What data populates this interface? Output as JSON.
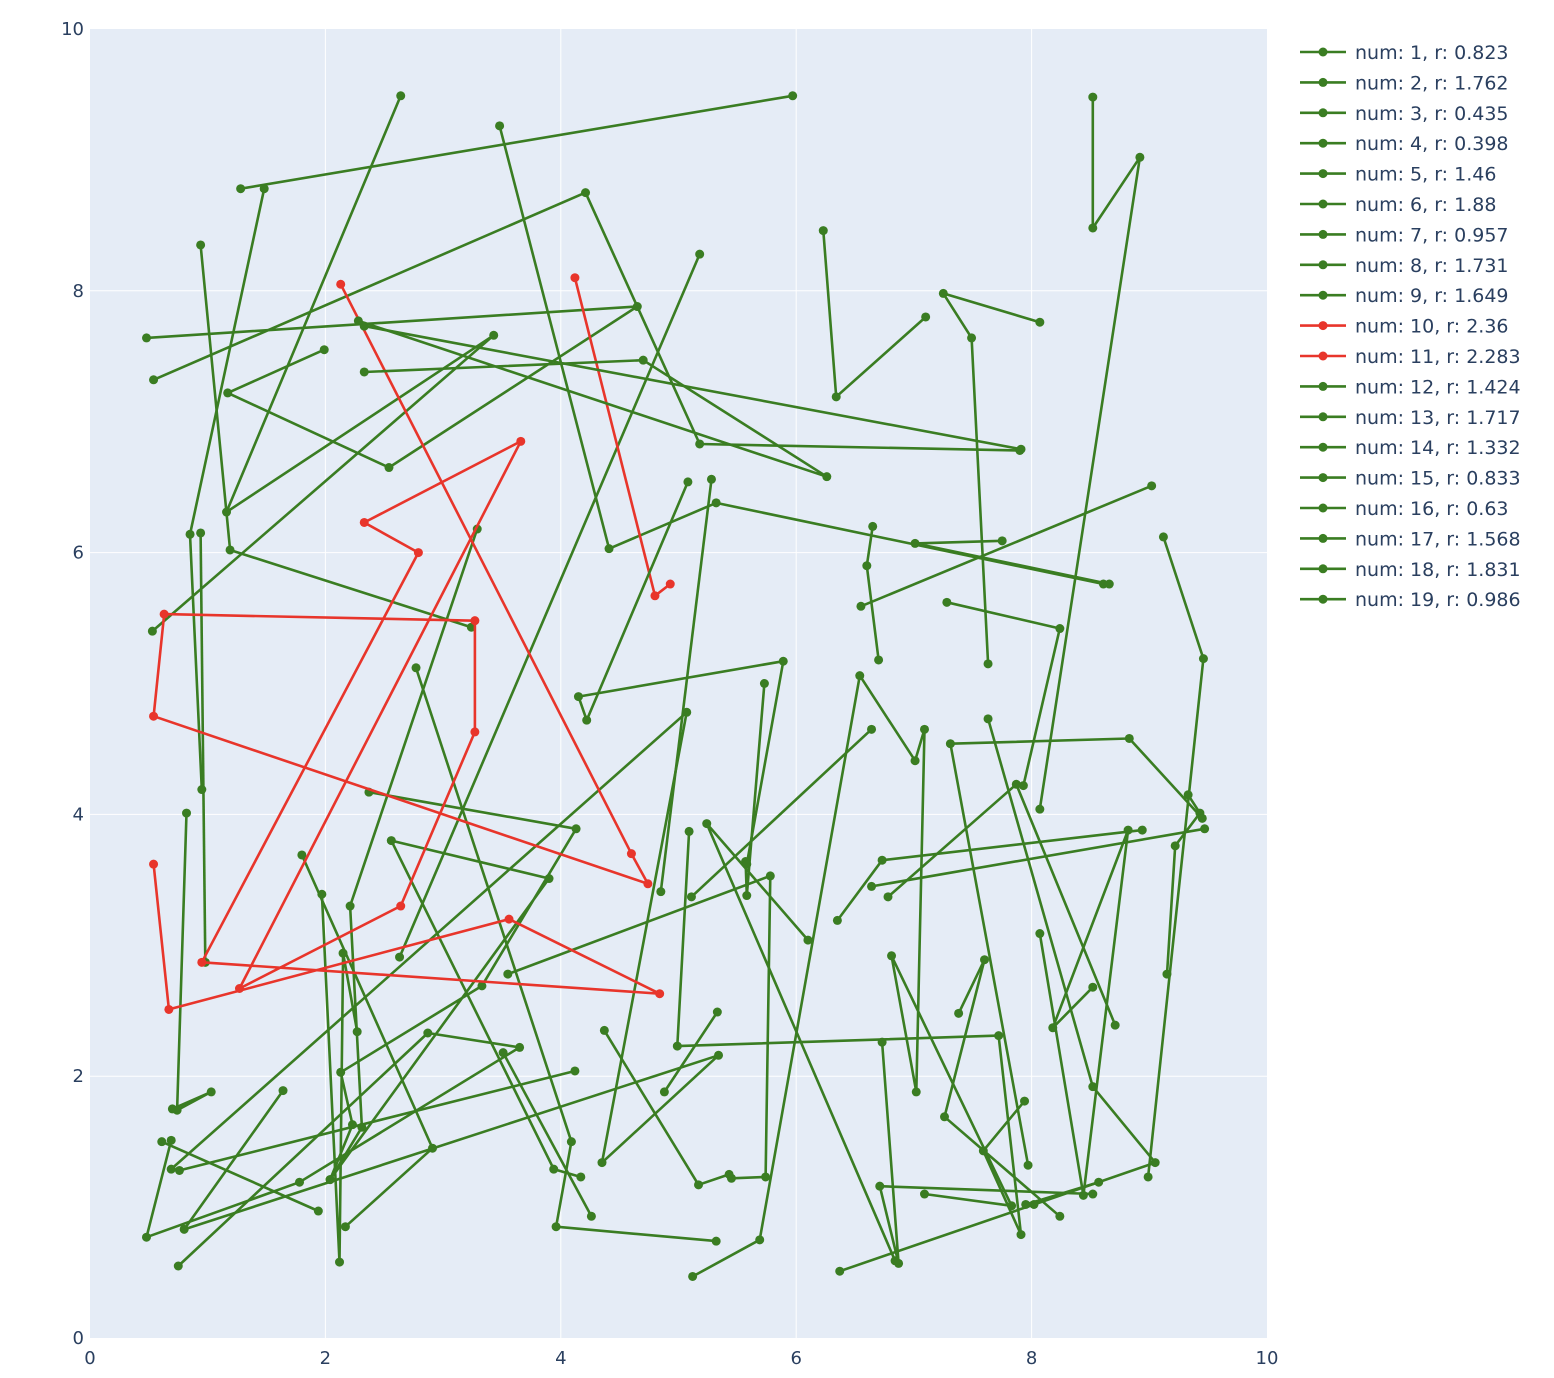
{
  "chart_data": {
    "type": "line",
    "xlim": [
      0,
      10
    ],
    "ylim": [
      0,
      10
    ],
    "x_ticks": [
      "0",
      "2",
      "4",
      "6",
      "8",
      "10"
    ],
    "y_ticks": [
      "0",
      "2",
      "4",
      "6",
      "8",
      "10"
    ],
    "grid": true,
    "legend_position": "right",
    "colors": {
      "green": "#3a7d22",
      "red": "#e8352b",
      "plot_bg": "#e5ecf6",
      "grid": "#ffffff"
    },
    "series": [
      {
        "name": "num: 1, r: 0.823",
        "color": "green",
        "points": [
          [
            1.28,
            8.78
          ],
          [
            5.97,
            9.49
          ]
        ]
      },
      {
        "name": "num: 2, r: 1.762",
        "color": "green",
        "points": [
          [
            2.64,
            9.49
          ],
          [
            1.16,
            6.31
          ],
          [
            3.43,
            7.66
          ],
          [
            0.53,
            5.4
          ]
        ]
      },
      {
        "name": "num: 3, r: 0.435",
        "color": "green",
        "points": [
          [
            1.48,
            8.78
          ],
          [
            0.85,
            6.14
          ],
          [
            0.95,
            4.19
          ]
        ]
      },
      {
        "name": "num: 4, r: 0.398",
        "color": "green",
        "points": [
          [
            0.94,
            8.35
          ],
          [
            1.19,
            6.02
          ],
          [
            3.24,
            5.43
          ]
        ]
      },
      {
        "name": "num: 5, r: 1.46",
        "color": "green",
        "points": [
          [
            0.54,
            7.32
          ],
          [
            4.21,
            8.75
          ],
          [
            5.18,
            6.83
          ],
          [
            7.9,
            6.78
          ]
        ]
      },
      {
        "name": "num: 6, r: 1.88",
        "color": "green",
        "points": [
          [
            0.48,
            7.64
          ],
          [
            4.65,
            7.88
          ],
          [
            2.54,
            6.65
          ],
          [
            1.17,
            7.22
          ],
          [
            1.99,
            7.55
          ]
        ]
      },
      {
        "name": "num: 7, r: 0.957",
        "color": "green",
        "points": [
          [
            6.23,
            8.46
          ],
          [
            6.34,
            7.19
          ],
          [
            7.1,
            7.8
          ]
        ]
      },
      {
        "name": "num: 8, r: 1.731",
        "color": "green",
        "points": [
          [
            8.52,
            9.48
          ],
          [
            8.52,
            8.48
          ],
          [
            8.92,
            9.02
          ],
          [
            8.07,
            4.04
          ]
        ]
      },
      {
        "name": "num: 9, r: 1.649",
        "color": "green",
        "points": [
          [
            3.48,
            9.26
          ],
          [
            4.41,
            6.03
          ],
          [
            5.32,
            6.38
          ],
          [
            8.61,
            5.76
          ]
        ]
      },
      {
        "name": "num: 10, r: 2.36",
        "color": "red",
        "points": [
          [
            4.12,
            8.1
          ],
          [
            4.8,
            5.67
          ],
          [
            4.93,
            5.76
          ]
        ]
      },
      {
        "name": "num: 11, r: 2.283",
        "color": "red",
        "points": [
          [
            2.13,
            8.05
          ],
          [
            4.6,
            3.7
          ],
          [
            4.74,
            3.47
          ],
          [
            0.54,
            4.75
          ],
          [
            0.63,
            5.53
          ],
          [
            3.27,
            5.48
          ],
          [
            3.27,
            4.63
          ],
          [
            2.64,
            3.3
          ],
          [
            1.27,
            2.67
          ],
          [
            3.66,
            6.85
          ],
          [
            2.33,
            6.23
          ],
          [
            2.79,
            6.0
          ],
          [
            0.95,
            2.87
          ],
          [
            4.84,
            2.63
          ],
          [
            3.56,
            3.2
          ],
          [
            0.67,
            2.51
          ],
          [
            0.54,
            3.62
          ]
        ]
      },
      {
        "name": "num: 12, r: 1.424",
        "color": "green",
        "points": [
          [
            2.33,
            7.73
          ],
          [
            7.91,
            6.79
          ]
        ]
      },
      {
        "name": "num: 13, r: 1.717",
        "color": "green",
        "points": [
          [
            2.33,
            7.38
          ],
          [
            4.7,
            7.47
          ],
          [
            6.26,
            6.58
          ],
          [
            2.28,
            7.77
          ]
        ]
      },
      {
        "name": "num: 14, r: 1.332",
        "color": "green",
        "points": [
          [
            8.07,
            7.76
          ],
          [
            7.25,
            7.98
          ],
          [
            7.49,
            7.64
          ],
          [
            7.63,
            5.15
          ]
        ]
      },
      {
        "name": "num: 15, r: 0.833",
        "color": "green",
        "points": [
          [
            5.08,
            6.54
          ],
          [
            4.22,
            4.72
          ],
          [
            4.15,
            4.9
          ],
          [
            5.89,
            5.17
          ],
          [
            5.58,
            3.62
          ]
        ]
      },
      {
        "name": "num: 16, r: 0.63",
        "color": "green",
        "points": [
          [
            7.75,
            6.09
          ],
          [
            7.01,
            6.07
          ],
          [
            8.66,
            5.76
          ]
        ]
      },
      {
        "name": "num: 17, r: 1.568",
        "color": "green",
        "points": [
          [
            6.55,
            5.59
          ],
          [
            9.02,
            6.51
          ]
        ]
      },
      {
        "name": "num: 18, r: 1.831",
        "color": "green",
        "points": [
          [
            6.65,
            6.2
          ],
          [
            6.6,
            5.9
          ],
          [
            6.7,
            5.18
          ]
        ]
      },
      {
        "name": "num: 19, r: 0.986",
        "color": "green",
        "points": [
          [
            7.28,
            5.62
          ],
          [
            8.24,
            5.42
          ],
          [
            7.93,
            4.22
          ]
        ]
      }
    ],
    "background_paths": [
      [
        [
          0.82,
          4.01
        ],
        [
          0.74,
          1.74
        ],
        [
          1.03,
          1.88
        ],
        [
          0.7,
          1.75
        ]
      ],
      [
        [
          1.8,
          3.69
        ],
        [
          2.91,
          1.45
        ],
        [
          2.17,
          0.85
        ]
      ],
      [
        [
          1.97,
          3.39
        ],
        [
          2.12,
          0.58
        ],
        [
          2.15,
          2.94
        ],
        [
          2.27,
          2.34
        ]
      ],
      [
        [
          2.37,
          4.17
        ],
        [
          4.13,
          3.89
        ],
        [
          3.33,
          2.69
        ],
        [
          2.13,
          2.03
        ],
        [
          2.23,
          1.63
        ],
        [
          2.04,
          1.21
        ],
        [
          3.9,
          3.51
        ],
        [
          2.56,
          3.8
        ],
        [
          3.94,
          1.29
        ],
        [
          4.17,
          1.23
        ]
      ],
      [
        [
          2.77,
          5.12
        ],
        [
          4.09,
          1.5
        ],
        [
          3.96,
          0.85
        ],
        [
          5.32,
          0.74
        ]
      ],
      [
        [
          2.63,
          2.91
        ],
        [
          5.18,
          8.28
        ]
      ],
      [
        [
          3.51,
          2.18
        ],
        [
          4.26,
          0.93
        ]
      ],
      [
        [
          0.94,
          6.15
        ],
        [
          0.98,
          2.87
        ]
      ],
      [
        [
          0.69,
          1.29
        ],
        [
          5.07,
          4.78
        ],
        [
          4.35,
          1.34
        ],
        [
          5.34,
          2.16
        ],
        [
          0.8,
          0.83
        ],
        [
          1.64,
          1.89
        ]
      ],
      [
        [
          0.61,
          1.5
        ],
        [
          1.94,
          0.97
        ]
      ],
      [
        [
          0.75,
          0.55
        ],
        [
          2.87,
          2.33
        ],
        [
          3.65,
          2.22
        ],
        [
          1.78,
          1.19
        ],
        [
          0.48,
          0.77
        ],
        [
          0.69,
          1.51
        ]
      ],
      [
        [
          0.76,
          1.28
        ],
        [
          4.12,
          2.04
        ]
      ],
      [
        [
          3.55,
          2.78
        ],
        [
          5.78,
          3.53
        ],
        [
          5.74,
          1.23
        ],
        [
          5.45,
          1.22
        ]
      ],
      [
        [
          3.29,
          6.18
        ],
        [
          2.21,
          3.3
        ],
        [
          2.31,
          1.61
        ],
        [
          2.04,
          1.21
        ]
      ],
      [
        [
          4.37,
          2.35
        ],
        [
          5.17,
          1.17
        ],
        [
          5.43,
          1.25
        ]
      ],
      [
        [
          4.88,
          1.88
        ],
        [
          5.33,
          2.49
        ]
      ],
      [
        [
          5.57,
          3.64
        ],
        [
          5.58,
          3.38
        ],
        [
          5.73,
          5.0
        ]
      ],
      [
        [
          6.1,
          3.04
        ],
        [
          5.24,
          3.93
        ],
        [
          6.84,
          0.59
        ]
      ],
      [
        [
          5.11,
          3.37
        ],
        [
          6.64,
          4.65
        ]
      ],
      [
        [
          4.85,
          3.41
        ],
        [
          5.28,
          6.56
        ]
      ],
      [
        [
          5.09,
          3.87
        ],
        [
          4.99,
          2.23
        ],
        [
          7.72,
          2.31
        ],
        [
          7.91,
          0.79
        ],
        [
          7.59,
          1.43
        ],
        [
          7.94,
          1.81
        ]
      ],
      [
        [
          5.12,
          0.47
        ],
        [
          5.69,
          0.75
        ],
        [
          6.54,
          5.06
        ],
        [
          7.01,
          4.41
        ],
        [
          7.09,
          4.65
        ],
        [
          7.02,
          1.88
        ],
        [
          6.81,
          2.92
        ],
        [
          7.83,
          1.01
        ],
        [
          7.09,
          1.1
        ]
      ],
      [
        [
          6.35,
          3.19
        ],
        [
          6.73,
          3.65
        ],
        [
          8.94,
          3.88
        ]
      ],
      [
        [
          6.73,
          2.26
        ],
        [
          6.87,
          0.57
        ],
        [
          6.71,
          1.16
        ],
        [
          8.52,
          1.1
        ]
      ],
      [
        [
          6.64,
          3.45
        ],
        [
          9.47,
          3.89
        ]
      ],
      [
        [
          6.78,
          3.37
        ],
        [
          7.87,
          4.23
        ],
        [
          8.71,
          2.39
        ]
      ],
      [
        [
          7.63,
          4.73
        ],
        [
          8.52,
          1.92
        ],
        [
          9.05,
          1.34
        ],
        [
          8.02,
          1.02
        ],
        [
          6.37,
          0.51
        ]
      ],
      [
        [
          7.38,
          2.48
        ],
        [
          7.6,
          2.89
        ],
        [
          7.26,
          1.69
        ],
        [
          8.24,
          0.93
        ]
      ],
      [
        [
          8.07,
          3.09
        ],
        [
          8.44,
          1.09
        ],
        [
          8.82,
          3.88
        ],
        [
          8.18,
          2.37
        ],
        [
          8.52,
          2.68
        ]
      ],
      [
        [
          7.95,
          1.02
        ],
        [
          8.57,
          1.19
        ]
      ],
      [
        [
          9.33,
          4.15
        ],
        [
          9.43,
          4.01
        ],
        [
          9.22,
          3.76
        ],
        [
          9.15,
          2.78
        ]
      ],
      [
        [
          7.97,
          1.32
        ],
        [
          7.31,
          4.54
        ],
        [
          8.83,
          4.58
        ],
        [
          9.45,
          3.97
        ]
      ],
      [
        [
          9.12,
          6.12
        ],
        [
          9.46,
          5.19
        ],
        [
          8.99,
          1.23
        ]
      ]
    ]
  },
  "chart_geometry_note": ""
}
